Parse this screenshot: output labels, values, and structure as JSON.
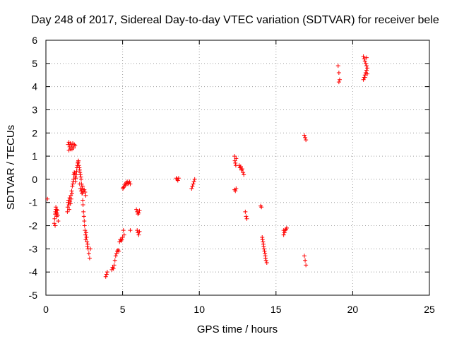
{
  "chart_data": {
    "type": "scatter",
    "title": "Day 248 of 2017, Sidereal Day-to-day VTEC variation (SDTVAR) for receiver bele",
    "xlabel": "GPS time / hours",
    "ylabel": "SDTVAR / TECUs",
    "xlim": [
      0,
      25
    ],
    "ylim": [
      -5,
      6
    ],
    "xticks": [
      0,
      5,
      10,
      15,
      20,
      25
    ],
    "yticks": [
      -5,
      -4,
      -3,
      -2,
      -1,
      0,
      1,
      2,
      3,
      4,
      5,
      6
    ],
    "xtick_labels": [
      "0",
      "5",
      "10",
      "15",
      "20",
      "25"
    ],
    "ytick_labels": [
      "-5",
      "-4",
      "-3",
      "-2",
      "-1",
      "0",
      "1",
      "2",
      "3",
      "4",
      "5",
      "6"
    ],
    "grid": true,
    "marker": "+",
    "color": "#ff0000",
    "series": [
      {
        "x": [
          0.1,
          0.55,
          0.57,
          0.6,
          0.62,
          0.65,
          0.68,
          0.7,
          0.72,
          0.75,
          0.78,
          0.8,
          0.6,
          0.65,
          0.7,
          1.4,
          1.42,
          1.45,
          1.47,
          1.5,
          1.52,
          1.55,
          1.57,
          1.6,
          1.62,
          1.65,
          1.68,
          1.7,
          1.72,
          1.75,
          1.78,
          1.8,
          1.82,
          1.85,
          1.88,
          1.9,
          1.92,
          1.95,
          1.98,
          2.0,
          2.02,
          2.05,
          2.08,
          2.1,
          2.12,
          2.15,
          2.18,
          2.2,
          2.22,
          2.25,
          2.28,
          2.3,
          2.32,
          2.35,
          2.38,
          2.4,
          2.42,
          2.45,
          2.48,
          2.5,
          2.52,
          2.55,
          2.58,
          2.6,
          2.62,
          2.65,
          2.68,
          2.7,
          2.72,
          2.75,
          2.8,
          2.85,
          2.9,
          1.45,
          1.5,
          1.55,
          1.6,
          1.65,
          1.7,
          1.75,
          1.8,
          1.85,
          1.9,
          1.5,
          1.6,
          1.7,
          2.2,
          2.25,
          2.3,
          2.35,
          2.4,
          2.45,
          2.5,
          2.55,
          2.6,
          3.9,
          3.95,
          4.0,
          4.3,
          4.35,
          4.4,
          4.45,
          4.5,
          4.55,
          4.6,
          4.65,
          4.7,
          4.75,
          4.8,
          4.85,
          4.9,
          4.95,
          5.0,
          5.02,
          5.05,
          5.1,
          5.15,
          5.2,
          5.25,
          5.3,
          5.35,
          5.4,
          5.45,
          5.5,
          5.05,
          5.1,
          5.5,
          5.9,
          5.95,
          6.0,
          6.05,
          6.1,
          5.95,
          6.0,
          6.05,
          6.1,
          8.5,
          8.55,
          8.6,
          8.65,
          9.5,
          9.55,
          9.6,
          9.65,
          9.7,
          12.3,
          12.32,
          12.35,
          12.38,
          12.4,
          12.3,
          12.35,
          12.4,
          12.6,
          12.65,
          12.7,
          12.75,
          12.8,
          12.85,
          12.9,
          13.0,
          13.05,
          13.1,
          14.0,
          14.05,
          14.1,
          14.12,
          14.15,
          14.18,
          14.2,
          14.22,
          14.25,
          14.28,
          14.3,
          14.32,
          14.35,
          14.4,
          15.5,
          15.55,
          15.6,
          15.65,
          15.7,
          15.5,
          16.85,
          16.9,
          16.95,
          16.85,
          16.9,
          16.95,
          19.05,
          19.1,
          19.15,
          19.1,
          20.7,
          20.75,
          20.8,
          20.85,
          20.9,
          20.95,
          20.7,
          20.75,
          20.8,
          20.85,
          20.9,
          20.95,
          20.8,
          20.9
        ],
        "y": [
          -0.85,
          -1.9,
          -1.7,
          -1.5,
          -1.4,
          -1.3,
          -1.5,
          -1.6,
          -1.45,
          -1.35,
          -1.55,
          -1.8,
          -2.0,
          -1.2,
          -1.3,
          -1.4,
          -1.2,
          -1.0,
          -0.9,
          -1.1,
          -1.3,
          -0.8,
          -0.95,
          -1.05,
          -0.7,
          -0.85,
          -0.5,
          -0.6,
          -0.3,
          -0.2,
          -0.1,
          0.0,
          0.2,
          0.3,
          0.25,
          0.1,
          -0.1,
          0.05,
          0.2,
          0.35,
          0.5,
          0.6,
          0.7,
          0.75,
          0.8,
          0.6,
          0.5,
          0.4,
          0.3,
          0.2,
          0.1,
          0.0,
          -0.2,
          -0.4,
          -0.6,
          -0.9,
          -1.1,
          -1.4,
          -1.6,
          -1.8,
          -2.0,
          -2.2,
          -2.4,
          -2.6,
          -2.3,
          -2.5,
          -2.7,
          -2.9,
          -2.8,
          -3.0,
          -3.2,
          -3.4,
          -3.0,
          1.5,
          1.6,
          1.4,
          1.3,
          1.5,
          1.4,
          1.55,
          1.35,
          1.5,
          1.45,
          1.25,
          1.55,
          1.3,
          -0.2,
          -0.4,
          -0.5,
          -0.6,
          -0.3,
          -0.5,
          -0.45,
          -0.55,
          -0.7,
          -4.2,
          -4.1,
          -4.0,
          -3.9,
          -3.8,
          -3.85,
          -3.7,
          -3.5,
          -3.3,
          -3.2,
          -3.1,
          -3.05,
          -3.1,
          -2.7,
          -2.6,
          -2.65,
          -2.6,
          -2.5,
          -0.4,
          -0.35,
          -0.3,
          -0.2,
          -0.25,
          -0.15,
          -0.1,
          -0.2,
          -0.15,
          -0.1,
          -0.2,
          -2.2,
          -2.4,
          -2.2,
          -1.3,
          -1.4,
          -1.5,
          -1.45,
          -1.35,
          -2.2,
          -2.3,
          -2.4,
          -2.25,
          0.05,
          0.0,
          -0.05,
          0.05,
          -0.4,
          -0.3,
          -0.2,
          -0.1,
          0.0,
          1.0,
          0.8,
          0.7,
          0.6,
          0.9,
          -0.45,
          -0.5,
          -0.4,
          0.6,
          0.5,
          0.55,
          0.4,
          0.45,
          0.3,
          0.2,
          -1.4,
          -1.6,
          -1.7,
          -1.15,
          -1.2,
          -2.5,
          -2.6,
          -2.7,
          -2.8,
          -2.9,
          -3.0,
          -3.1,
          -3.2,
          -3.3,
          -3.4,
          -3.5,
          -3.6,
          -2.4,
          -2.3,
          -2.2,
          -2.15,
          -2.1,
          -2.2,
          1.9,
          1.8,
          1.7,
          -3.3,
          -3.5,
          -3.7,
          4.9,
          4.6,
          4.3,
          4.2,
          5.3,
          5.2,
          5.1,
          5.0,
          4.9,
          4.8,
          4.3,
          4.4,
          4.5,
          4.6,
          4.7,
          4.55,
          4.4,
          5.25
        ]
      }
    ]
  }
}
